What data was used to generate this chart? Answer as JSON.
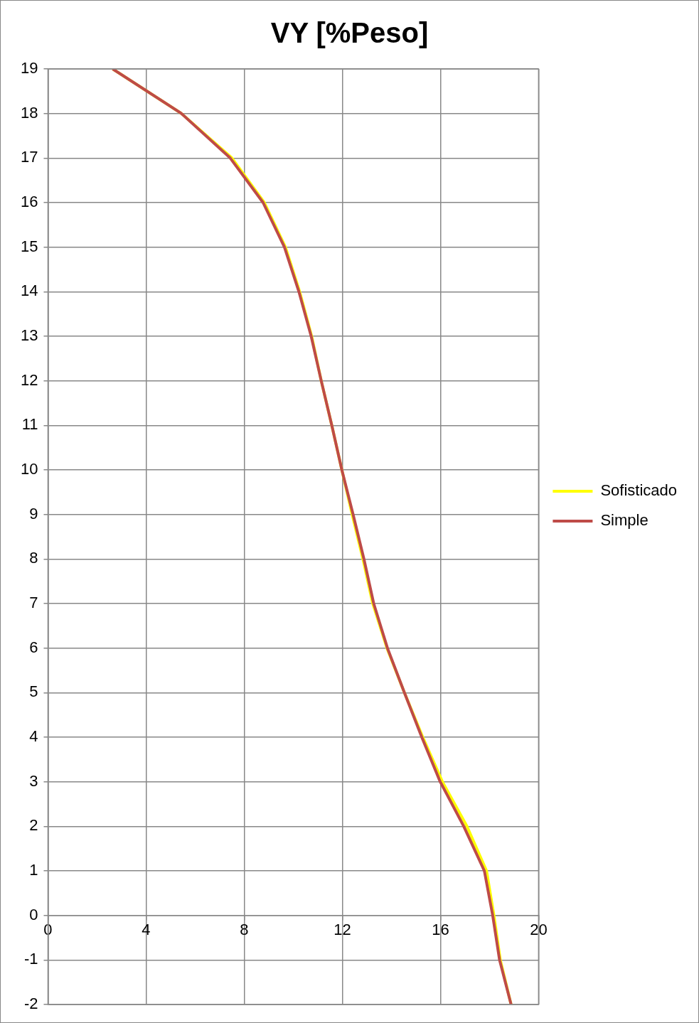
{
  "chart_data": {
    "type": "line",
    "title": "VY [%Peso]",
    "xlim": [
      0,
      20
    ],
    "xticks": [
      0,
      4,
      8,
      12,
      16,
      20
    ],
    "ylim": [
      -2,
      19
    ],
    "yticks": [
      -2,
      -1,
      0,
      1,
      2,
      3,
      4,
      5,
      6,
      7,
      8,
      9,
      10,
      11,
      12,
      13,
      14,
      15,
      16,
      17,
      18,
      19
    ],
    "grid": true,
    "legend": "right",
    "marker": "none",
    "line_style": "solid",
    "series": [
      {
        "name": "Sofisticado",
        "color": "#ffff00",
        "x": [
          2.64,
          5.44,
          7.5,
          8.82,
          9.68,
          10.26,
          10.75,
          11.14,
          11.57,
          11.98,
          12.4,
          12.84,
          13.24,
          13.82,
          14.53,
          15.28,
          16.08,
          17.08,
          17.88,
          18.18,
          18.44,
          18.88
        ],
        "values": [
          19,
          18,
          17,
          16,
          15,
          14,
          13,
          12,
          11,
          10,
          9,
          8,
          7,
          6,
          5,
          4,
          3,
          2,
          1,
          0,
          -1,
          -2
        ]
      },
      {
        "name": "Simple",
        "color": "#be4b48",
        "x": [
          2.64,
          5.44,
          7.43,
          8.77,
          9.64,
          10.23,
          10.73,
          11.14,
          11.57,
          11.98,
          12.44,
          12.88,
          13.28,
          13.84,
          14.53,
          15.24,
          15.99,
          16.95,
          17.79,
          18.13,
          18.41,
          18.88
        ],
        "values": [
          19,
          18,
          17,
          16,
          15,
          14,
          13,
          12,
          11,
          10,
          9,
          8,
          7,
          6,
          5,
          4,
          3,
          2,
          1,
          0,
          -1,
          -2
        ]
      }
    ]
  }
}
